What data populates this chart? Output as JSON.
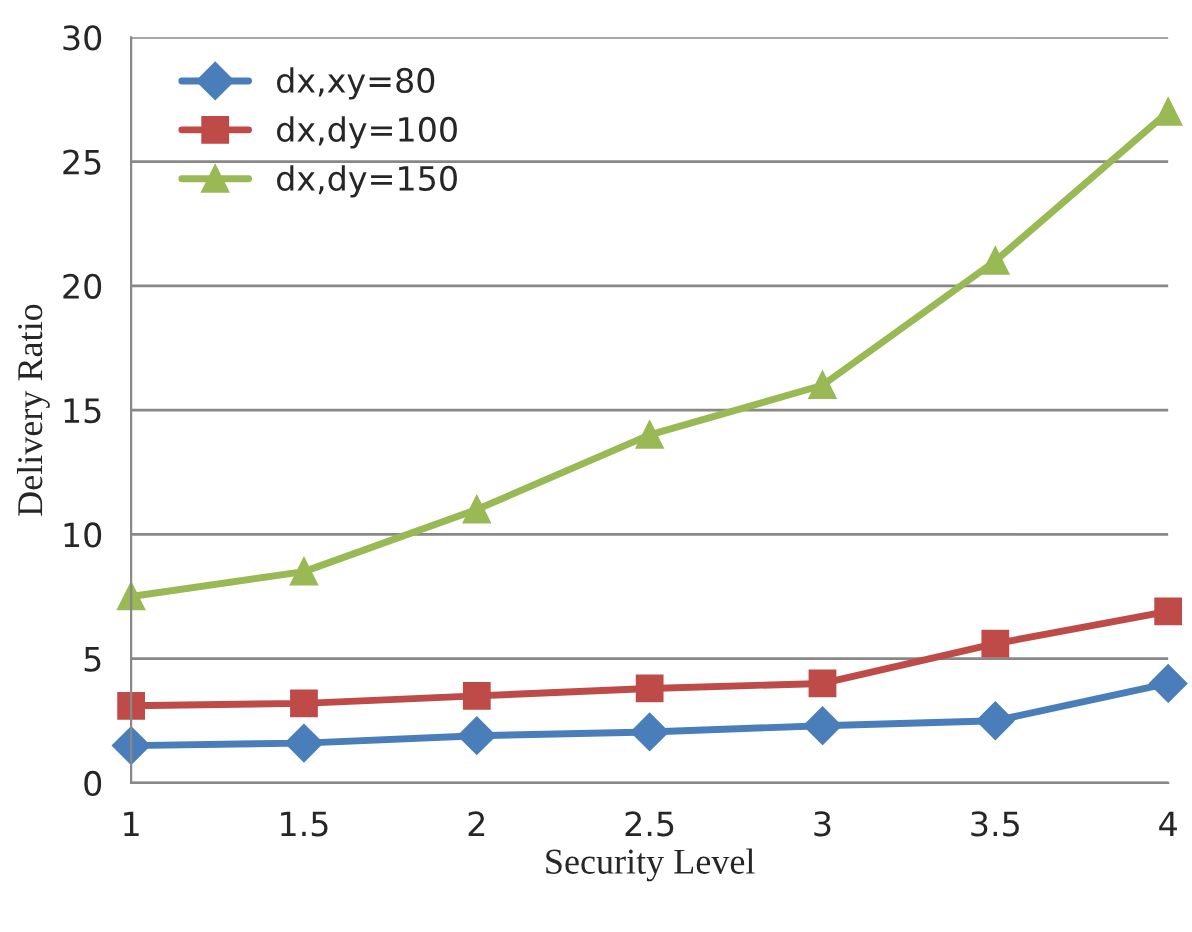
{
  "chart_data": {
    "type": "line",
    "xlabel": "Security Level",
    "ylabel": "Delivery Ratio",
    "x": [
      1,
      1.5,
      2,
      2.5,
      3,
      3.5,
      4
    ],
    "xlim": [
      1,
      4
    ],
    "xticks": [
      1,
      1.5,
      2,
      2.5,
      3,
      3.5,
      4
    ],
    "ylim": [
      0,
      30
    ],
    "yticks": [
      0,
      5,
      10,
      15,
      20,
      25,
      30
    ],
    "grid": "y",
    "legend": "top left",
    "line_style": "solid",
    "series": [
      {
        "name": "dx,xy=80",
        "color": "#4a7ebb",
        "marker": "diamond",
        "values": [
          1.5,
          1.6,
          1.9,
          2.05,
          2.3,
          2.5,
          4.0
        ]
      },
      {
        "name": "dx,dy=100",
        "color": "#be4b48",
        "marker": "square",
        "values": [
          3.1,
          3.2,
          3.5,
          3.8,
          4.0,
          5.6,
          6.9
        ]
      },
      {
        "name": "dx,dy=150",
        "color": "#98b954",
        "marker": "triangle",
        "values": [
          7.5,
          8.5,
          11,
          14,
          16,
          21,
          27
        ]
      }
    ]
  }
}
